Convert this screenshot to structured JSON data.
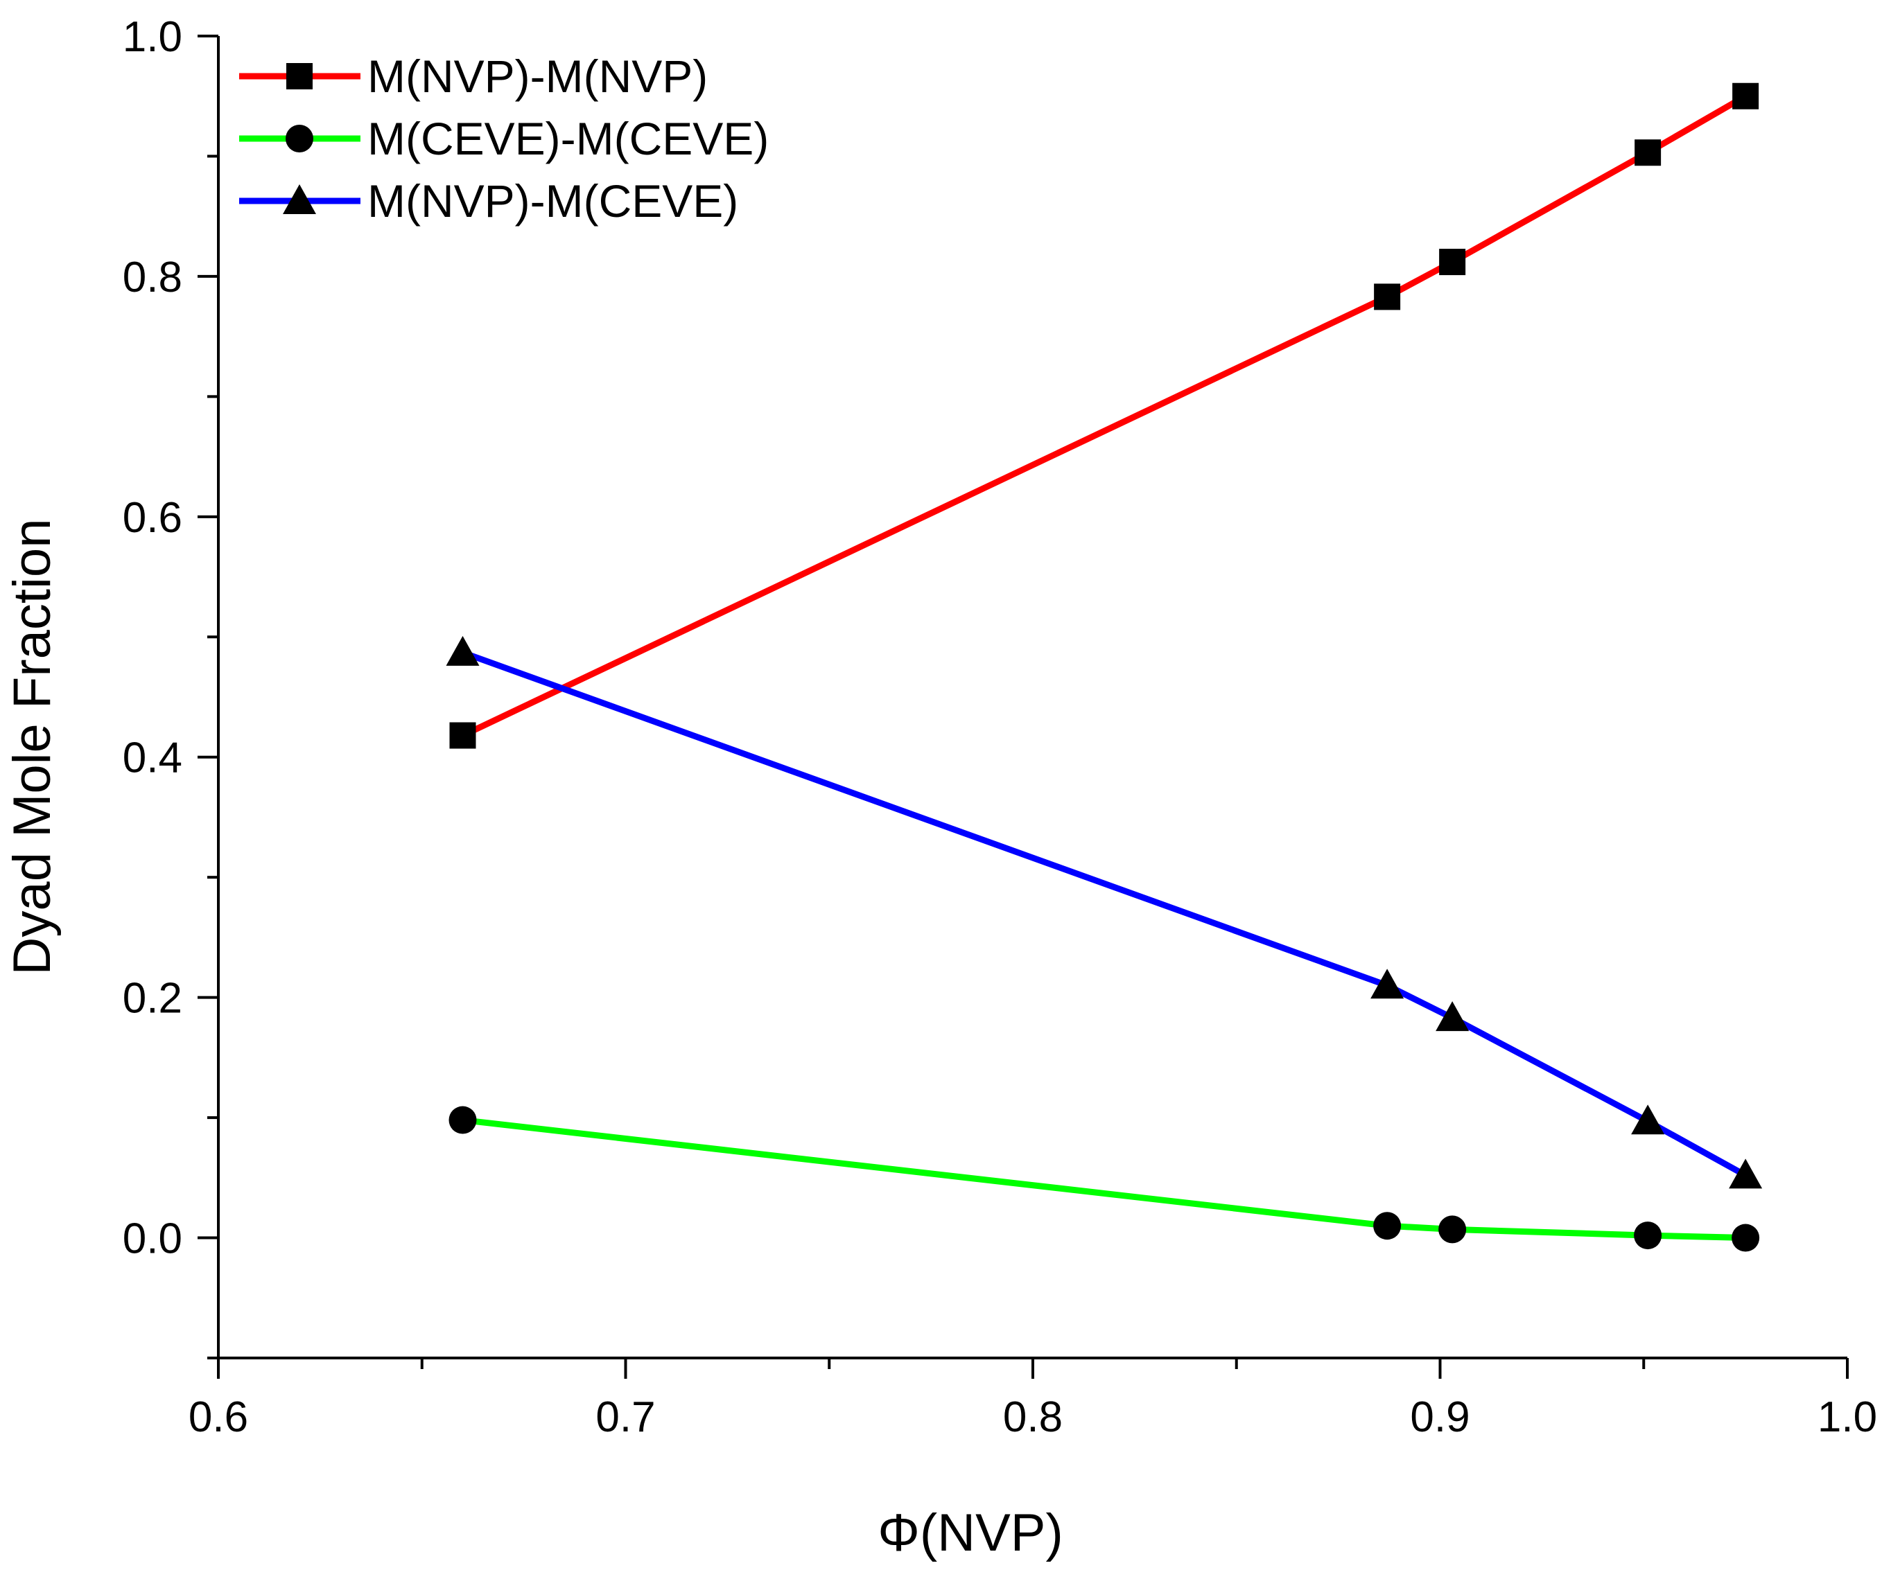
{
  "chart_data": {
    "type": "line",
    "title": "",
    "xlabel": "Φ(NVP)",
    "ylabel": "Dyad Mole Fraction",
    "xlim": [
      0.6,
      1.0
    ],
    "ylim": [
      -0.1,
      1.0
    ],
    "xticks": [
      "0.6",
      "0.7",
      "0.8",
      "0.9",
      "1.0"
    ],
    "yticks": [
      "0.0",
      "0.2",
      "0.4",
      "0.6",
      "0.8",
      "1.0"
    ],
    "grid": false,
    "legend_position": "top-left",
    "x": [
      0.66,
      0.887,
      0.903,
      0.951,
      0.975
    ],
    "series": [
      {
        "name": "M(NVP)-M(NVP)",
        "color": "#ff0000",
        "marker": "square",
        "values": [
          0.418,
          0.783,
          0.812,
          0.903,
          0.95
        ]
      },
      {
        "name": "M(CEVE)-M(CEVE)",
        "color": "#00ff00",
        "marker": "circle",
        "values": [
          0.098,
          0.01,
          0.007,
          0.002,
          0.0
        ]
      },
      {
        "name": "M(NVP)-M(CEVE)",
        "color": "#0000ff",
        "marker": "triangle",
        "values": [
          0.487,
          0.21,
          0.183,
          0.097,
          0.052
        ]
      }
    ]
  }
}
